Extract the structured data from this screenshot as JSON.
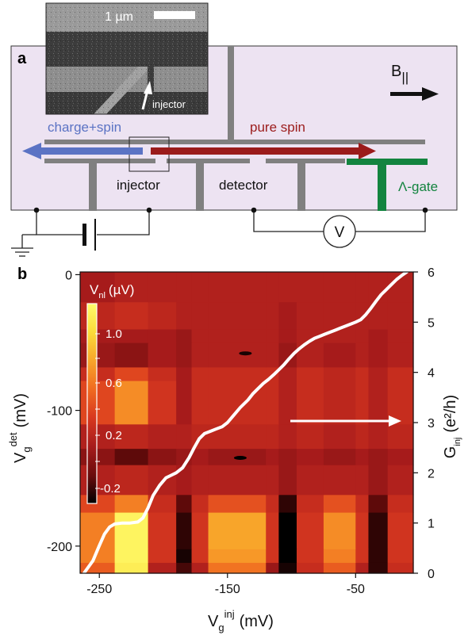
{
  "panel_a": {
    "label": "a",
    "sem_scale_label": "1 µm",
    "sem_injector_label": "injector",
    "field_label_main": "B",
    "field_label_sub": "||",
    "charge_spin_label": "charge+spin",
    "pure_spin_label": "pure spin",
    "injector_label": "injector",
    "detector_label": "detector",
    "lambda_gate_label": "Λ-gate",
    "voltmeter_label": "V",
    "colors": {
      "device_bg": "#ede3f2",
      "gate": "#808080",
      "charge_spin_arrow": "#5b73c4",
      "pure_spin_arrow": "#9b1b1b",
      "lambda_gate": "#13843f"
    }
  },
  "panel_b": {
    "label": "b",
    "colorbar": {
      "title_main": "V",
      "title_sub": "nl",
      "title_unit": "(µV)",
      "ticks": [
        "1.0",
        "0.6",
        "0.2",
        "-0.2"
      ]
    },
    "x_label_main": "V",
    "x_label_sub": "g",
    "x_label_sup": "inj",
    "x_label_unit": "(mV)",
    "y_left_label_main": "V",
    "y_left_label_sub": "g",
    "y_left_label_sup": "det",
    "y_left_label_unit": "(mV)",
    "y_right_label_main": "G",
    "y_right_label_sub": "inj",
    "y_right_label_unit": "(e²/h)"
  },
  "chart_data": {
    "type": "heatmap",
    "x_ticks": [
      "-250",
      "-150",
      "-50"
    ],
    "x_tick_values": [
      -250,
      -150,
      -50
    ],
    "xlim": [
      -265,
      -5
    ],
    "y_ticks": [
      "0",
      "-100",
      "-200"
    ],
    "y_tick_values": [
      0,
      -100,
      -200
    ],
    "ylim": [
      -220,
      2
    ],
    "y2_ticks": [
      "0",
      "1",
      "2",
      "3",
      "4",
      "5",
      "6"
    ],
    "y2_tick_values": [
      0,
      1,
      2,
      3,
      4,
      5,
      6
    ],
    "y2lim": [
      0,
      6
    ],
    "colorbar_range": [
      -0.3,
      1.3
    ],
    "colormap": [
      "#000000",
      "#6b0c0c",
      "#a81c1c",
      "#d8381f",
      "#f06a20",
      "#f8a32a",
      "#fbdc3a",
      "#fffb6b"
    ],
    "col_edges_mV": [
      -265,
      -238,
      -212,
      -190,
      -178,
      -165,
      -120,
      -110,
      -96,
      -75,
      -50,
      -40,
      -25,
      -5
    ],
    "row_edges_mV": [
      -220,
      -212,
      -202,
      -175,
      -162,
      -140,
      -128,
      -110,
      -78,
      -68,
      -50,
      -40,
      -20,
      2
    ],
    "heatmap_values": [
      [
        0.55,
        1.2,
        0.2,
        -0.15,
        0.2,
        0.65,
        0.1,
        -0.25,
        0.3,
        0.55,
        0.2,
        -0.2,
        0.3
      ],
      [
        0.7,
        1.25,
        0.35,
        -0.25,
        0.35,
        0.8,
        0.35,
        -0.3,
        0.35,
        0.7,
        0.35,
        -0.2,
        0.35
      ],
      [
        0.7,
        1.25,
        0.35,
        -0.2,
        0.35,
        0.85,
        0.35,
        -0.3,
        0.35,
        0.75,
        0.35,
        -0.2,
        0.35
      ],
      [
        0.45,
        0.7,
        0.3,
        -0.1,
        0.3,
        0.5,
        0.3,
        -0.2,
        0.3,
        0.5,
        0.3,
        -0.1,
        0.3
      ],
      [
        0.2,
        0.25,
        0.2,
        0.15,
        0.2,
        0.2,
        0.2,
        0.1,
        0.2,
        0.2,
        0.2,
        0.1,
        0.2
      ],
      [
        0.05,
        -0.1,
        0.05,
        0.1,
        0.15,
        0.1,
        0.15,
        0.1,
        0.15,
        0.1,
        0.15,
        0.1,
        0.15
      ],
      [
        0.2,
        0.25,
        0.2,
        0.2,
        0.25,
        0.25,
        0.25,
        0.2,
        0.25,
        0.2,
        0.25,
        0.2,
        0.25
      ],
      [
        0.45,
        0.75,
        0.35,
        0.15,
        0.3,
        0.3,
        0.3,
        0.2,
        0.3,
        0.25,
        0.3,
        0.2,
        0.3
      ],
      [
        0.3,
        0.45,
        0.3,
        0.15,
        0.3,
        0.3,
        0.3,
        0.2,
        0.3,
        0.25,
        0.3,
        0.2,
        0.3
      ],
      [
        0.1,
        0.05,
        0.15,
        0.1,
        0.2,
        0.2,
        0.2,
        0.1,
        0.2,
        0.15,
        0.2,
        0.15,
        0.2
      ],
      [
        0.15,
        0.15,
        0.15,
        0.1,
        0.2,
        0.2,
        0.2,
        0.15,
        0.2,
        0.2,
        0.2,
        0.15,
        0.2
      ],
      [
        0.25,
        0.3,
        0.25,
        0.2,
        0.2,
        0.2,
        0.2,
        0.15,
        0.2,
        0.2,
        0.2,
        0.2,
        0.2
      ],
      [
        0.15,
        0.2,
        0.2,
        0.2,
        0.2,
        0.2,
        0.2,
        0.2,
        0.2,
        0.2,
        0.2,
        0.2,
        0.2
      ]
    ],
    "heatmap_features": [
      {
        "x": -136,
        "y": -58,
        "value": -0.25
      },
      {
        "x": -140,
        "y": -135,
        "value": -0.3
      }
    ],
    "conductance_curve": {
      "x": [
        -262,
        -255,
        -250,
        -246,
        -242,
        -238,
        -232,
        -226,
        -220,
        -216,
        -212,
        -208,
        -203,
        -198,
        -194,
        -190,
        -185,
        -180,
        -176,
        -172,
        -168,
        -163,
        -159,
        -154,
        -150,
        -146,
        -140,
        -134,
        -130,
        -126,
        -122,
        -118,
        -114,
        -110,
        -106,
        -102,
        -98,
        -94,
        -90,
        -86,
        -82,
        -78,
        -74,
        -70,
        -66,
        -62,
        -58,
        -54,
        -50,
        -46,
        -42,
        -38,
        -34,
        -30,
        -26,
        -22,
        -18,
        -14,
        -10
      ],
      "y": [
        0.0,
        0.25,
        0.55,
        0.78,
        0.92,
        0.98,
        1.0,
        1.0,
        1.02,
        1.1,
        1.3,
        1.55,
        1.75,
        1.9,
        1.95,
        2.0,
        2.1,
        2.3,
        2.5,
        2.68,
        2.78,
        2.83,
        2.87,
        2.92,
        3.0,
        3.12,
        3.3,
        3.45,
        3.58,
        3.68,
        3.78,
        3.86,
        3.95,
        4.05,
        4.15,
        4.27,
        4.38,
        4.47,
        4.55,
        4.62,
        4.68,
        4.72,
        4.76,
        4.8,
        4.84,
        4.88,
        4.92,
        4.96,
        5.0,
        5.05,
        5.15,
        5.28,
        5.42,
        5.55,
        5.65,
        5.75,
        5.85,
        5.93,
        6.0
      ]
    }
  }
}
